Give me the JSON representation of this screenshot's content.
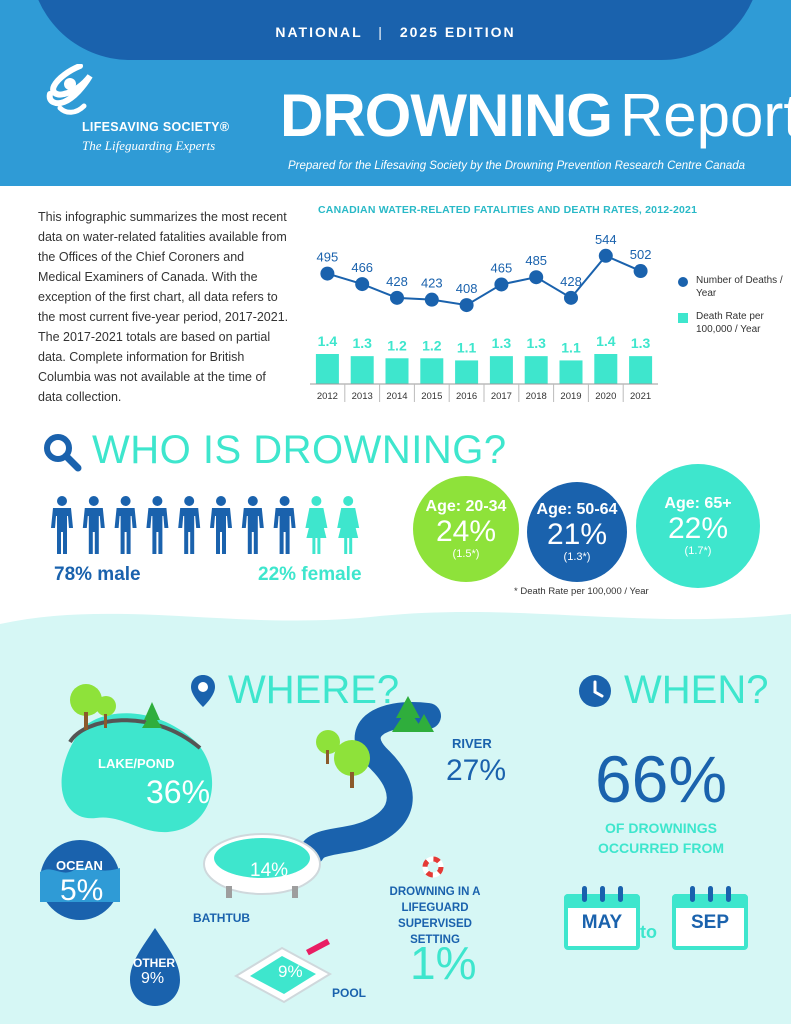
{
  "header": {
    "edition_left": "NATIONAL",
    "edition_sep": "|",
    "edition_right": "2025 EDITION",
    "org_name": "LIFESAVING SOCIETY®",
    "org_tagline": "The Lifeguarding Experts",
    "title_bold": "DROWNING",
    "title_light": "Report",
    "prepared_by": "Prepared for the Lifesaving Society by the Drowning Prevention Research Centre Canada"
  },
  "intro": {
    "text": "This infographic summarizes the most recent data on water-related fatalities available from the Offices of the Chief Coroners and Medical Examiners of Canada. With the exception of the first chart, all data refers to the most current five-year period, 2017-2021. The 2017-2021 totals are based on partial data. Complete information for British Columbia was not available at the time of data collection."
  },
  "chart_data": {
    "type": "line",
    "title": "CANADIAN WATER-RELATED FATALITIES AND DEATH RATES, 2012-2021",
    "categories": [
      "2012",
      "2013",
      "2014",
      "2015",
      "2016",
      "2017",
      "2018",
      "2019",
      "2020",
      "2021"
    ],
    "series": [
      {
        "name": "Number of Deaths / Year",
        "kind": "line",
        "color": "#1a62ad",
        "values": [
          495,
          466,
          428,
          423,
          408,
          465,
          485,
          428,
          544,
          502
        ]
      },
      {
        "name": "Death Rate per 100,000 / Year",
        "kind": "bar",
        "color": "#3ee6cd",
        "values": [
          1.4,
          1.3,
          1.2,
          1.2,
          1.1,
          1.3,
          1.3,
          1.1,
          1.4,
          1.3
        ]
      }
    ],
    "value_labels": {
      "deaths": [
        "495",
        "466",
        "428",
        "423",
        "408",
        "465",
        "485",
        "428",
        "544",
        "502"
      ],
      "rates": [
        "1.4",
        "1.3",
        "1.2",
        "1.2",
        "1.1",
        "1.3",
        "1.3",
        "1.1",
        "1.4",
        "1.3"
      ]
    },
    "legend": {
      "deaths": "Number of Deaths / Year",
      "rate": "Death Rate per 100,000 / Year"
    }
  },
  "who": {
    "title": "WHO IS DROWNING?",
    "male_count": 8,
    "female_count": 2,
    "male_pct": "78% male",
    "female_pct": "22% female",
    "ages": [
      {
        "label": "Age: 20-34",
        "pct": "24%",
        "rate": "(1.5*)"
      },
      {
        "label": "Age: 50-64",
        "pct": "21%",
        "rate": "(1.3*)"
      },
      {
        "label": "Age: 65+",
        "pct": "22%",
        "rate": "(1.7*)"
      }
    ],
    "footnote": "* Death Rate per 100,000 / Year"
  },
  "where": {
    "title": "WHERE?",
    "lake_label": "LAKE/POND",
    "lake_pct": "36%",
    "river_label": "RIVER",
    "river_pct": "27%",
    "ocean_label": "OCEAN",
    "ocean_pct": "5%",
    "bathtub_label": "BATHTUB",
    "bathtub_pct": "14%",
    "other_label": "OTHER",
    "other_pct": "9%",
    "pool_label": "POOL",
    "pool_pct": "9%",
    "lifeguard_label": "DROWNING IN A LIFEGUARD SUPERVISED SETTING",
    "lifeguard_pct": "1%"
  },
  "when": {
    "title": "WHEN?",
    "pct": "66%",
    "text": "OF DROWNINGS OCCURRED FROM",
    "from_month": "MAY",
    "to_word": "to",
    "to_month": "SEP"
  },
  "colors": {
    "dark_blue": "#1a62ad",
    "mid_blue": "#2f9bd6",
    "turquoise": "#3ee6cd",
    "green": "#8ee23a",
    "light_bg": "#d6f7f5"
  }
}
